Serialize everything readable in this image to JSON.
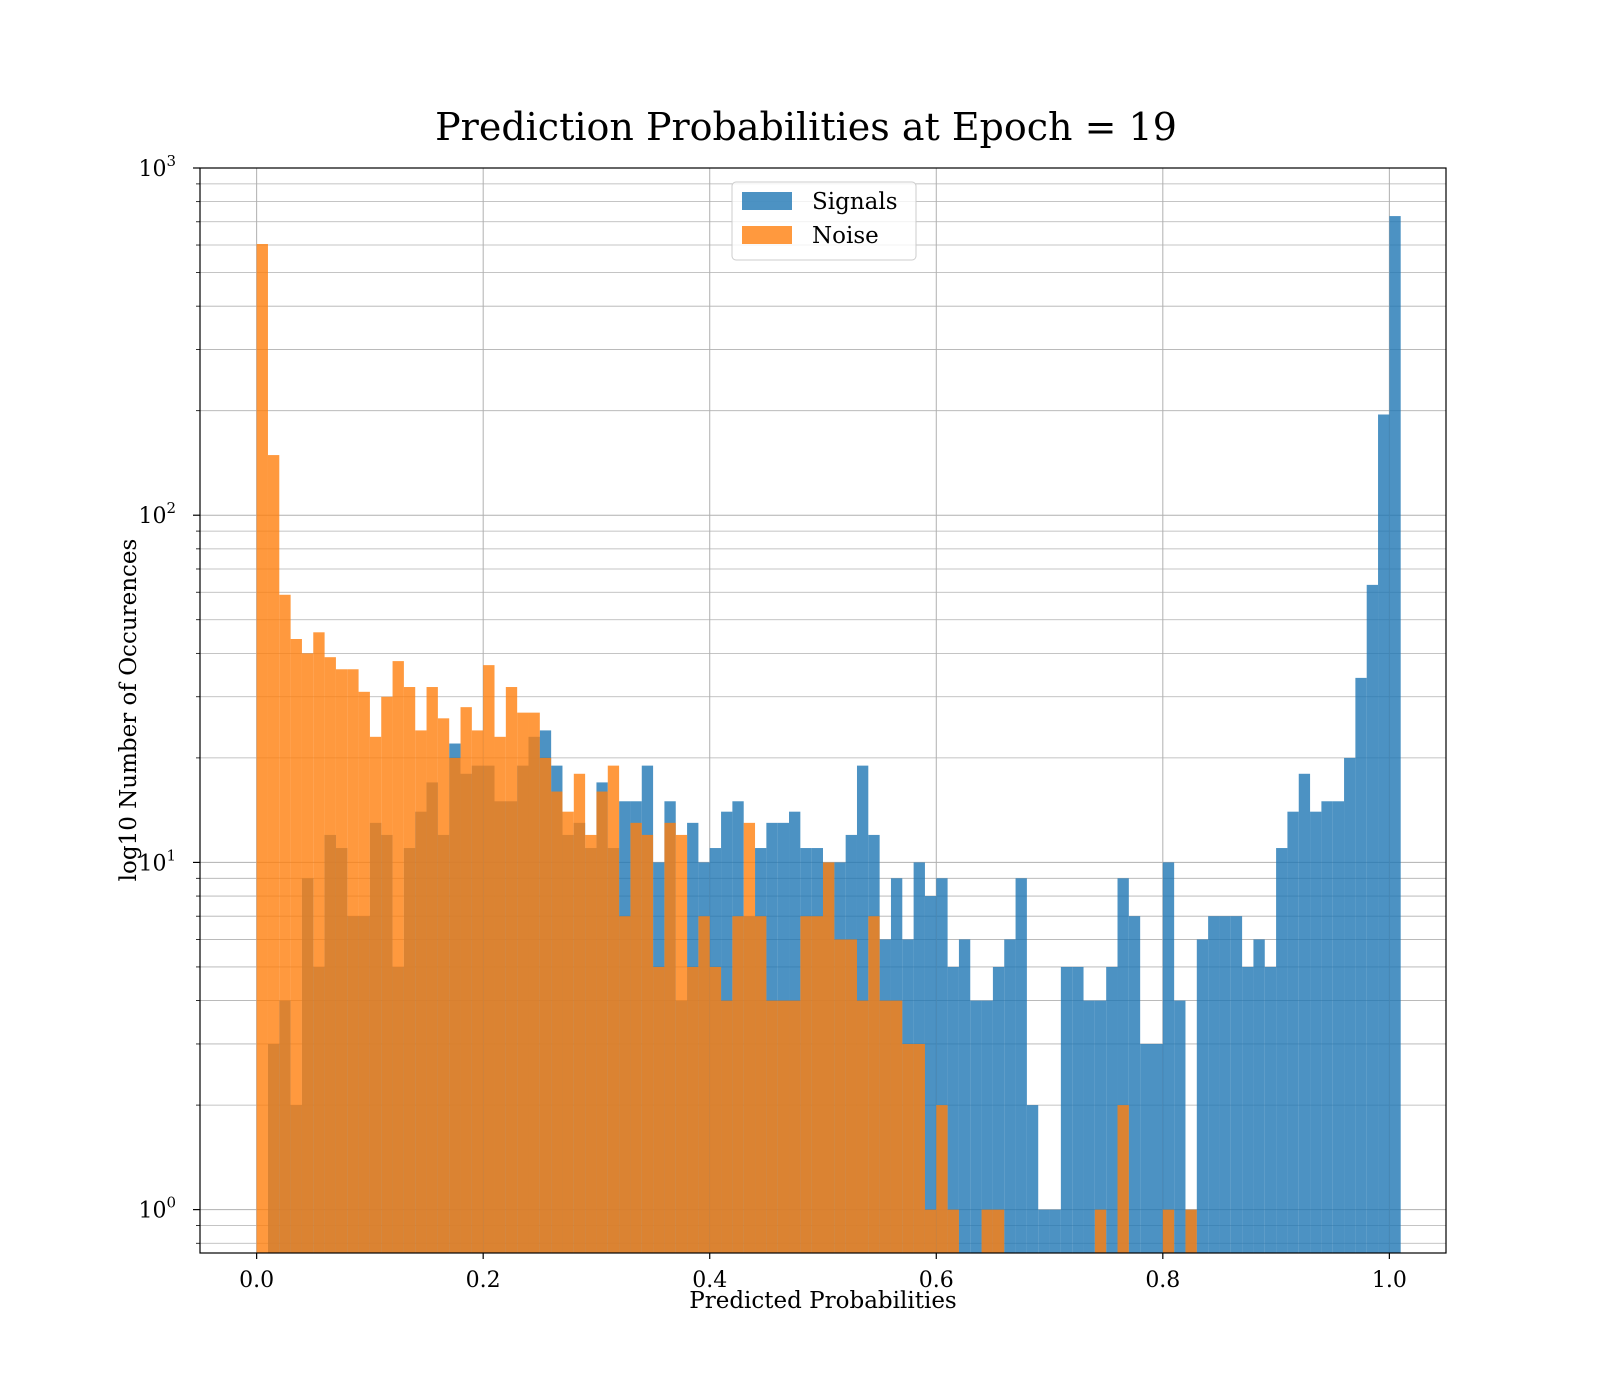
{
  "chart_data": {
    "type": "histogram",
    "title": "Prediction Probabilities at Epoch = 19",
    "xlabel": "Predicted Probabilities",
    "ylabel": "log10 Number of Occurences",
    "xlim": [
      -0.05,
      1.05
    ],
    "ylim": [
      0.75,
      1000
    ],
    "yscale": "log",
    "grid": true,
    "legend": "upper center",
    "x_ticks": [
      "0.0",
      "0.2",
      "0.4",
      "0.6",
      "0.8",
      "1.0"
    ],
    "y_ticks": [
      {
        "base": "10",
        "exp": "0"
      },
      {
        "base": "10",
        "exp": "1"
      },
      {
        "base": "10",
        "exp": "2"
      },
      {
        "base": "10",
        "exp": "3"
      }
    ],
    "series": [
      {
        "name": "Signals",
        "color": "#1f77b4",
        "bins": [
          [
            0.01,
            3
          ],
          [
            0.02,
            4
          ],
          [
            0.03,
            2
          ],
          [
            0.04,
            9
          ],
          [
            0.05,
            5
          ],
          [
            0.06,
            12
          ],
          [
            0.07,
            11
          ],
          [
            0.08,
            7
          ],
          [
            0.09,
            7
          ],
          [
            0.1,
            13
          ],
          [
            0.11,
            12
          ],
          [
            0.12,
            5
          ],
          [
            0.13,
            11
          ],
          [
            0.14,
            14
          ],
          [
            0.15,
            17
          ],
          [
            0.16,
            12
          ],
          [
            0.17,
            22
          ],
          [
            0.18,
            18
          ],
          [
            0.19,
            19
          ],
          [
            0.2,
            19
          ],
          [
            0.21,
            15
          ],
          [
            0.22,
            15
          ],
          [
            0.23,
            19
          ],
          [
            0.24,
            23
          ],
          [
            0.25,
            24
          ],
          [
            0.26,
            19
          ],
          [
            0.27,
            12
          ],
          [
            0.28,
            13
          ],
          [
            0.29,
            11
          ],
          [
            0.3,
            17
          ],
          [
            0.31,
            11
          ],
          [
            0.32,
            15
          ],
          [
            0.33,
            15
          ],
          [
            0.34,
            19
          ],
          [
            0.35,
            10
          ],
          [
            0.36,
            15
          ],
          [
            0.37,
            4
          ],
          [
            0.38,
            13
          ],
          [
            0.39,
            10
          ],
          [
            0.4,
            11
          ],
          [
            0.41,
            14
          ],
          [
            0.42,
            15
          ],
          [
            0.43,
            7
          ],
          [
            0.44,
            11
          ],
          [
            0.45,
            13
          ],
          [
            0.46,
            13
          ],
          [
            0.47,
            14
          ],
          [
            0.48,
            11
          ],
          [
            0.49,
            11
          ],
          [
            0.5,
            10
          ],
          [
            0.51,
            10
          ],
          [
            0.52,
            12
          ],
          [
            0.53,
            19
          ],
          [
            0.54,
            12
          ],
          [
            0.55,
            6
          ],
          [
            0.56,
            9
          ],
          [
            0.57,
            6
          ],
          [
            0.58,
            10
          ],
          [
            0.59,
            8
          ],
          [
            0.6,
            9
          ],
          [
            0.61,
            5
          ],
          [
            0.62,
            6
          ],
          [
            0.63,
            4
          ],
          [
            0.64,
            4
          ],
          [
            0.65,
            5
          ],
          [
            0.66,
            6
          ],
          [
            0.67,
            9
          ],
          [
            0.68,
            2
          ],
          [
            0.69,
            1
          ],
          [
            0.7,
            1
          ],
          [
            0.71,
            5
          ],
          [
            0.72,
            5
          ],
          [
            0.73,
            4
          ],
          [
            0.74,
            4
          ],
          [
            0.75,
            5
          ],
          [
            0.76,
            9
          ],
          [
            0.77,
            7
          ],
          [
            0.78,
            3
          ],
          [
            0.79,
            3
          ],
          [
            0.8,
            10
          ],
          [
            0.81,
            4
          ],
          [
            0.82,
            1
          ],
          [
            0.83,
            6
          ],
          [
            0.84,
            7
          ],
          [
            0.85,
            7
          ],
          [
            0.86,
            7
          ],
          [
            0.87,
            5
          ],
          [
            0.88,
            6
          ],
          [
            0.89,
            5
          ],
          [
            0.9,
            11
          ],
          [
            0.91,
            14
          ],
          [
            0.92,
            18
          ],
          [
            0.93,
            14
          ],
          [
            0.94,
            15
          ],
          [
            0.95,
            15
          ],
          [
            0.96,
            20
          ],
          [
            0.97,
            34
          ],
          [
            0.98,
            63
          ],
          [
            0.99,
            195
          ],
          [
            1.0,
            727
          ]
        ]
      },
      {
        "name": "Noise",
        "color": "#ff7f0e",
        "bins": [
          [
            0.0,
            604
          ],
          [
            0.01,
            149
          ],
          [
            0.02,
            59
          ],
          [
            0.03,
            44
          ],
          [
            0.04,
            40
          ],
          [
            0.05,
            46
          ],
          [
            0.06,
            39
          ],
          [
            0.07,
            36
          ],
          [
            0.08,
            36
          ],
          [
            0.09,
            31
          ],
          [
            0.1,
            23
          ],
          [
            0.11,
            30
          ],
          [
            0.12,
            38
          ],
          [
            0.13,
            32
          ],
          [
            0.14,
            24
          ],
          [
            0.15,
            32
          ],
          [
            0.16,
            26
          ],
          [
            0.17,
            20
          ],
          [
            0.18,
            28
          ],
          [
            0.19,
            24
          ],
          [
            0.2,
            37
          ],
          [
            0.21,
            23
          ],
          [
            0.22,
            32
          ],
          [
            0.23,
            27
          ],
          [
            0.24,
            27
          ],
          [
            0.25,
            20
          ],
          [
            0.26,
            16
          ],
          [
            0.27,
            14
          ],
          [
            0.28,
            18
          ],
          [
            0.29,
            12
          ],
          [
            0.3,
            16
          ],
          [
            0.31,
            19
          ],
          [
            0.32,
            7
          ],
          [
            0.33,
            13
          ],
          [
            0.34,
            12
          ],
          [
            0.35,
            5
          ],
          [
            0.36,
            13
          ],
          [
            0.37,
            12
          ],
          [
            0.38,
            5
          ],
          [
            0.39,
            7
          ],
          [
            0.4,
            5
          ],
          [
            0.41,
            4
          ],
          [
            0.42,
            7
          ],
          [
            0.43,
            13
          ],
          [
            0.44,
            7
          ],
          [
            0.45,
            4
          ],
          [
            0.46,
            4
          ],
          [
            0.47,
            4
          ],
          [
            0.48,
            7
          ],
          [
            0.49,
            7
          ],
          [
            0.5,
            10
          ],
          [
            0.51,
            6
          ],
          [
            0.52,
            6
          ],
          [
            0.53,
            4
          ],
          [
            0.54,
            7
          ],
          [
            0.55,
            4
          ],
          [
            0.56,
            4
          ],
          [
            0.57,
            3
          ],
          [
            0.58,
            3
          ],
          [
            0.59,
            1
          ],
          [
            0.6,
            2
          ],
          [
            0.61,
            1
          ],
          [
            0.62,
            0
          ],
          [
            0.63,
            0
          ],
          [
            0.64,
            1
          ],
          [
            0.65,
            1
          ],
          [
            0.66,
            0
          ],
          [
            0.67,
            0
          ],
          [
            0.68,
            0
          ],
          [
            0.69,
            0
          ],
          [
            0.7,
            0
          ],
          [
            0.71,
            0
          ],
          [
            0.72,
            0
          ],
          [
            0.73,
            0
          ],
          [
            0.74,
            1
          ],
          [
            0.75,
            0
          ],
          [
            0.76,
            2
          ],
          [
            0.77,
            0
          ],
          [
            0.78,
            0
          ],
          [
            0.79,
            0
          ],
          [
            0.8,
            1
          ],
          [
            0.81,
            0
          ],
          [
            0.82,
            1
          ]
        ]
      }
    ]
  }
}
